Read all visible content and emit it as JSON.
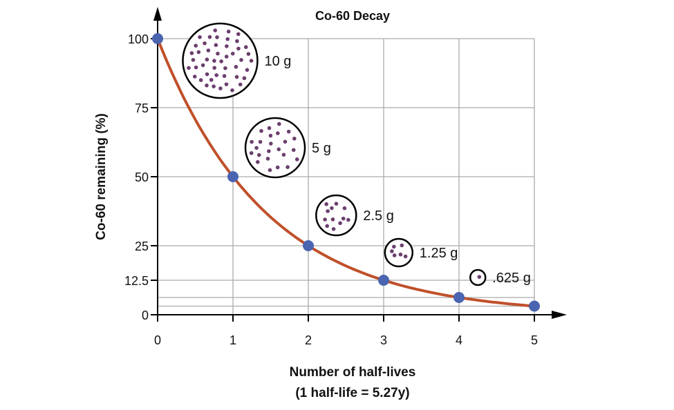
{
  "chart_data": {
    "type": "line",
    "title": "Co-60 Decay",
    "xlabel": "Number of half-lives",
    "xlabel_note": "(1 half-life = 5.27y)",
    "ylabel": "Co-60 remaining (%)",
    "x": [
      0,
      1,
      2,
      3,
      4,
      5
    ],
    "y": [
      100,
      50,
      25,
      12.5,
      6.25,
      3.125
    ],
    "xlim": [
      0,
      5
    ],
    "ylim": [
      0,
      100
    ],
    "x_ticks": [
      "0",
      "1",
      "2",
      "3",
      "4",
      "5"
    ],
    "y_ticks": [
      {
        "value": 100,
        "label": "100"
      },
      {
        "value": 75,
        "label": "75"
      },
      {
        "value": 50,
        "label": "50"
      },
      {
        "value": 25,
        "label": "25"
      },
      {
        "value": 12.5,
        "label": "12.5"
      },
      {
        "value": 0,
        "label": "0"
      }
    ],
    "extra_gridlines_y": [
      6.25,
      3.125
    ],
    "grid": true,
    "colors": {
      "curve": "#c0502a",
      "points": "#4a64b0",
      "dots": "#6b3f6e",
      "grid": "#aaaaaa"
    },
    "annotations": [
      {
        "label": "10 g",
        "x": 0.83,
        "y": 92
      },
      {
        "label": "5 g",
        "x": 1.56,
        "y": 60.5
      },
      {
        "label": "2.5 g",
        "x": 2.37,
        "y": 36
      },
      {
        "label": "1.25 g",
        "x": 3.2,
        "y": 22.5
      },
      {
        "label": ".625 g",
        "x": 4.25,
        "y": 13.5
      }
    ]
  }
}
